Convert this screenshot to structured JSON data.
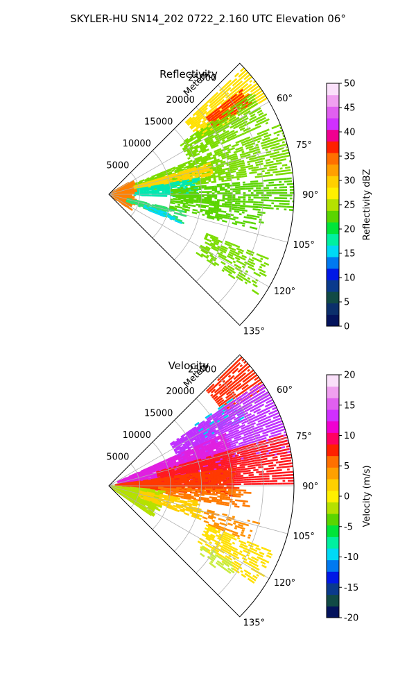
{
  "suptitle": "SKYLER-HU  SN14_202  0722_2.160 UTC Elevation 06°",
  "chart_data": [
    {
      "type": "polar-sector",
      "title": "Reflectivity",
      "radial_label": "Meters",
      "theta_range_deg": [
        45,
        135
      ],
      "r_max": 30000,
      "r_ticks": [
        5000,
        10000,
        15000,
        20000,
        25000
      ],
      "theta_ticks": [
        60,
        75,
        90,
        105,
        120,
        135
      ],
      "grid": true,
      "colorbar": {
        "label": "Reflectivity dBZ",
        "range": [
          0,
          50
        ],
        "ticks": [
          0,
          5,
          10,
          15,
          20,
          25,
          30,
          35,
          40,
          45,
          50
        ],
        "stops": [
          "#04135c",
          "#0b2f6b",
          "#114a45",
          "#0a3a8c",
          "#0018e6",
          "#0079f0",
          "#00d9f5",
          "#00f0a0",
          "#00e53a",
          "#5ad500",
          "#b5e100",
          "#fff000",
          "#ffd000",
          "#ffa000",
          "#ff7000",
          "#ff2000",
          "#f00090",
          "#d030ff",
          "#e060f0",
          "#f0a0f0",
          "#fae0fa"
        ]
      },
      "echoes": [
        {
          "color": "#ffe000",
          "theta": [
            47,
            59
          ],
          "r": [
            17000,
            30000
          ],
          "density": 0.8
        },
        {
          "color": "#ff2a00",
          "theta": [
            52,
            58
          ],
          "r": [
            20000,
            27000
          ],
          "density": 0.9
        },
        {
          "color": "#7bdc00",
          "theta": [
            55,
            66
          ],
          "r": [
            14000,
            28000
          ],
          "density": 0.6
        },
        {
          "color": "#7bdc00",
          "theta": [
            68,
            84
          ],
          "r": [
            2000,
            30000
          ],
          "density": 0.55
        },
        {
          "color": "#ffd400",
          "theta": [
            73,
            80
          ],
          "r": [
            3000,
            17000
          ],
          "density": 0.7
        },
        {
          "color": "#00e8b0",
          "theta": [
            80,
            92
          ],
          "r": [
            4000,
            14000
          ],
          "density": 0.6
        },
        {
          "color": "#5ad500",
          "theta": [
            85,
            95
          ],
          "r": [
            10000,
            30000
          ],
          "density": 0.55
        },
        {
          "color": "#ff8000",
          "theta": [
            60,
            125
          ],
          "r": [
            0,
            3500
          ],
          "density": 0.7
        },
        {
          "color": "#5ad500",
          "theta": [
            95,
            104
          ],
          "r": [
            10000,
            25000
          ],
          "density": 0.45
        },
        {
          "color": "#2fe070",
          "theta": [
            103,
            112
          ],
          "r": [
            3000,
            12000
          ],
          "density": 0.45
        },
        {
          "color": "#00d9f5",
          "theta": [
            108,
            112
          ],
          "r": [
            6000,
            12000
          ],
          "density": 0.3
        },
        {
          "color": "#7bdc00",
          "theta": [
            112,
            124
          ],
          "r": [
            17000,
            28000
          ],
          "density": 0.4
        }
      ]
    },
    {
      "type": "polar-sector",
      "title": "Velocity",
      "radial_label": "Meters",
      "theta_range_deg": [
        45,
        135
      ],
      "r_max": 30000,
      "r_ticks": [
        5000,
        10000,
        15000,
        20000,
        25000
      ],
      "theta_ticks": [
        60,
        75,
        90,
        105,
        120,
        135
      ],
      "grid": true,
      "colorbar": {
        "label": "Velocity (m/s)",
        "range": [
          -20,
          20
        ],
        "ticks": [
          -20,
          -15,
          -10,
          -5,
          0,
          5,
          10,
          15,
          20
        ],
        "stops": [
          "#04135c",
          "#114a45",
          "#0a3a8c",
          "#0018e6",
          "#0079f0",
          "#00d9f5",
          "#00f0a0",
          "#00e53a",
          "#5ad500",
          "#b5e100",
          "#fff000",
          "#ffd000",
          "#ffa000",
          "#ff7000",
          "#ff2000",
          "#ff0060",
          "#f000d0",
          "#d030ff",
          "#e060f0",
          "#f0a0f0",
          "#fae0fa"
        ]
      },
      "echoes": [
        {
          "color": "#ff2a00",
          "theta": [
            46,
            58
          ],
          "r": [
            22000,
            30000
          ],
          "density": 0.75
        },
        {
          "color": "#00c8f0",
          "theta": [
            55,
            64
          ],
          "r": [
            17000,
            24000
          ],
          "density": 0.5
        },
        {
          "color": "#c030ff",
          "theta": [
            56,
            80
          ],
          "r": [
            12000,
            30000
          ],
          "density": 0.8
        },
        {
          "color": "#e020e0",
          "theta": [
            66,
            86
          ],
          "r": [
            1500,
            20000
          ],
          "density": 0.8
        },
        {
          "color": "#ff1a20",
          "theta": [
            74,
            90
          ],
          "r": [
            8000,
            30000
          ],
          "density": 0.8
        },
        {
          "color": "#ff3a00",
          "theta": [
            82,
            95
          ],
          "r": [
            1000,
            20000
          ],
          "density": 0.75
        },
        {
          "color": "#ff7a00",
          "theta": [
            92,
            100
          ],
          "r": [
            8000,
            22000
          ],
          "density": 0.5
        },
        {
          "color": "#b5e100",
          "theta": [
            95,
            125
          ],
          "r": [
            0,
            8000
          ],
          "density": 0.55
        },
        {
          "color": "#ffd000",
          "theta": [
            100,
            110
          ],
          "r": [
            5000,
            15000
          ],
          "density": 0.45
        },
        {
          "color": "#ff9000",
          "theta": [
            104,
            112
          ],
          "r": [
            16000,
            24000
          ],
          "density": 0.35
        },
        {
          "color": "#ffe000",
          "theta": [
            112,
            124
          ],
          "r": [
            17000,
            28000
          ],
          "density": 0.45
        },
        {
          "color": "#c8ec40",
          "theta": [
            122,
            128
          ],
          "r": [
            18000,
            24000
          ],
          "density": 0.3
        }
      ]
    }
  ]
}
